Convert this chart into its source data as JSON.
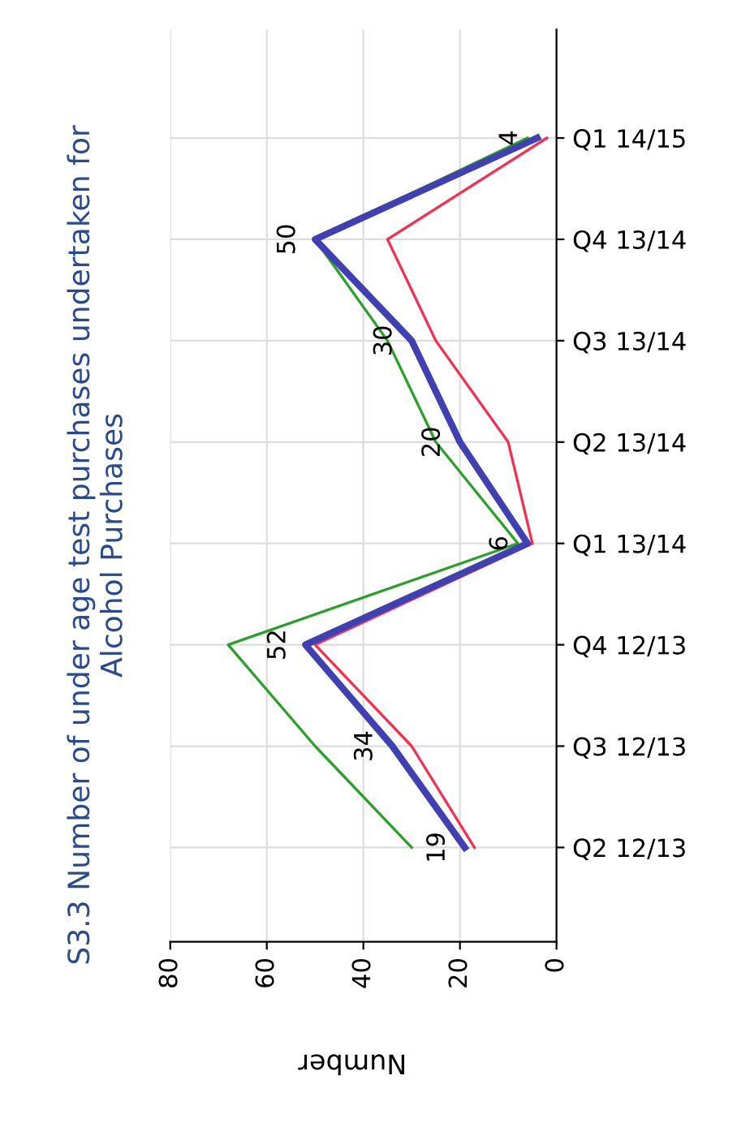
{
  "chart_data": {
    "type": "line",
    "title": "S3.3 Number of under age test purchases undertaken for\nAlcohol Purchases",
    "xlabel": "Number",
    "categories": [
      "Q1 14/15",
      "Q4 13/14",
      "Q3 13/14",
      "Q2 13/14",
      "Q1 13/14",
      "Q4 12/13",
      "Q3 12/13",
      "Q2 12/13"
    ],
    "orientation": "horizontal",
    "xlim": [
      80,
      0
    ],
    "xticks": [
      80,
      60,
      40,
      20,
      0
    ],
    "grid": true,
    "legend": false,
    "marker": "none",
    "line_style": "solid",
    "series": [
      {
        "color": "#2e9e2e",
        "values": [
          6,
          50,
          35,
          25,
          8,
          68,
          50,
          30
        ]
      },
      {
        "color": "#ee3355",
        "values": [
          2,
          35,
          25,
          10,
          5,
          50,
          30,
          17
        ]
      },
      {
        "color": "#4040b0",
        "values": [
          4,
          50,
          30,
          20,
          6,
          52,
          34,
          19
        ],
        "value_labels": [
          "4",
          "50",
          "30",
          "20",
          "6",
          "52",
          "34",
          "19"
        ]
      }
    ]
  }
}
